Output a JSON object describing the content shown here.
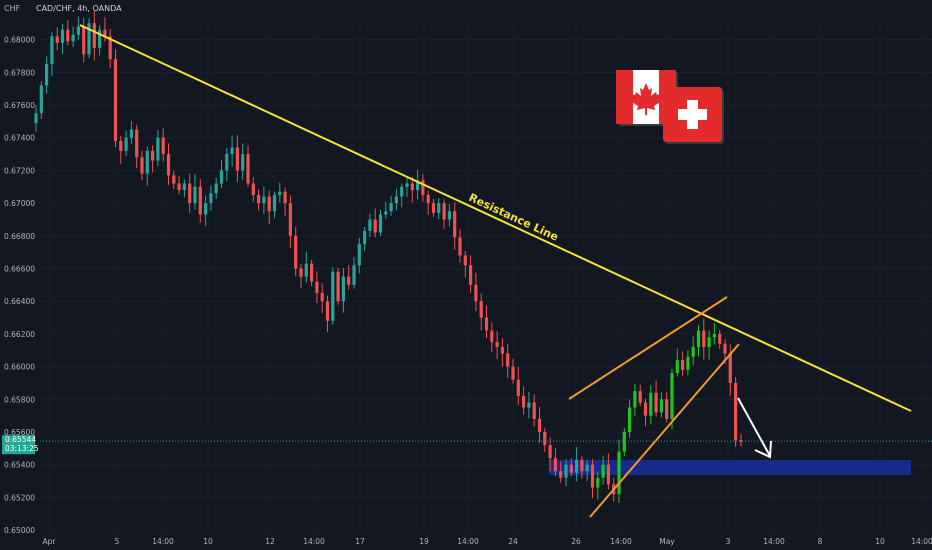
{
  "header": {
    "currency": "CHF",
    "symbol": "CAD/CHF, 4h, OANDA"
  },
  "price_badge": {
    "price": "0.65544",
    "countdown": "03:13:25",
    "color": "#22ab94"
  },
  "annotations": {
    "resistance_label": "Resistance Line"
  },
  "icons": [
    "canada-flag-icon",
    "switzerland-flag-icon"
  ],
  "colors": {
    "background": "#131722",
    "up": "#26a69a",
    "up_bright": "#1ec51e",
    "down": "#ef5350",
    "resistance": "#f5e333",
    "channel": "#f29b2b",
    "support_zone": "#152c8a",
    "axis_text": "#b2b5be"
  },
  "chart_data": {
    "type": "candlestick",
    "symbol": "CAD/CHF",
    "timeframe": "4h",
    "broker": "OANDA",
    "y_ticks": [
      "0.68000",
      "0.67800",
      "0.67600",
      "0.67400",
      "0.67200",
      "0.67000",
      "0.66800",
      "0.66600",
      "0.66400",
      "0.66200",
      "0.66000",
      "0.65800",
      "0.65600",
      "0.65400",
      "0.65200",
      "0.65000"
    ],
    "ylim": [
      0.6497,
      0.6812
    ],
    "x_ticks": [
      "Apr",
      "5",
      "14:00",
      "10",
      "12",
      "14:00",
      "17",
      "19",
      "14:00",
      "24",
      "26",
      "14:00",
      "May",
      "3",
      "14:00",
      "8",
      "10",
      "14:00"
    ],
    "x_domain_bars": [
      0,
      174
    ],
    "current_price": 0.65544,
    "closes": [
      0.6755,
      0.6772,
      0.6785,
      0.6802,
      0.6798,
      0.6806,
      0.6799,
      0.6803,
      0.6808,
      0.6791,
      0.681,
      0.6795,
      0.6806,
      0.6802,
      0.6788,
      0.6738,
      0.6732,
      0.674,
      0.6745,
      0.6728,
      0.6718,
      0.6732,
      0.6726,
      0.674,
      0.673,
      0.6717,
      0.6712,
      0.6708,
      0.6712,
      0.67,
      0.671,
      0.6693,
      0.67,
      0.6706,
      0.6712,
      0.672,
      0.673,
      0.6734,
      0.672,
      0.673,
      0.6712,
      0.6705,
      0.67,
      0.6704,
      0.6695,
      0.6705,
      0.6707,
      0.67,
      0.668,
      0.666,
      0.6655,
      0.6663,
      0.6652,
      0.6645,
      0.664,
      0.6628,
      0.6658,
      0.664,
      0.6655,
      0.665,
      0.6662,
      0.6675,
      0.6683,
      0.669,
      0.6682,
      0.6693,
      0.6695,
      0.67,
      0.6704,
      0.671,
      0.6712,
      0.6708,
      0.6714,
      0.6705,
      0.67,
      0.6694,
      0.67,
      0.669,
      0.6695,
      0.6679,
      0.6668,
      0.6662,
      0.665,
      0.664,
      0.663,
      0.6622,
      0.6615,
      0.6612,
      0.6608,
      0.66,
      0.6592,
      0.6582,
      0.6575,
      0.6578,
      0.6568,
      0.656,
      0.6552,
      0.6544,
      0.6536,
      0.6532,
      0.654,
      0.6535,
      0.6543,
      0.6536,
      0.654,
      0.6526,
      0.6532,
      0.654,
      0.6528,
      0.6522,
      0.6548,
      0.656,
      0.6575,
      0.6585,
      0.6578,
      0.657,
      0.6584,
      0.6572,
      0.658,
      0.6568,
      0.6596,
      0.6604,
      0.6598,
      0.6606,
      0.6612,
      0.6622,
      0.6612,
      0.6618,
      0.662,
      0.6614,
      0.6608,
      0.659,
      0.6555,
      0.6554
    ]
  }
}
